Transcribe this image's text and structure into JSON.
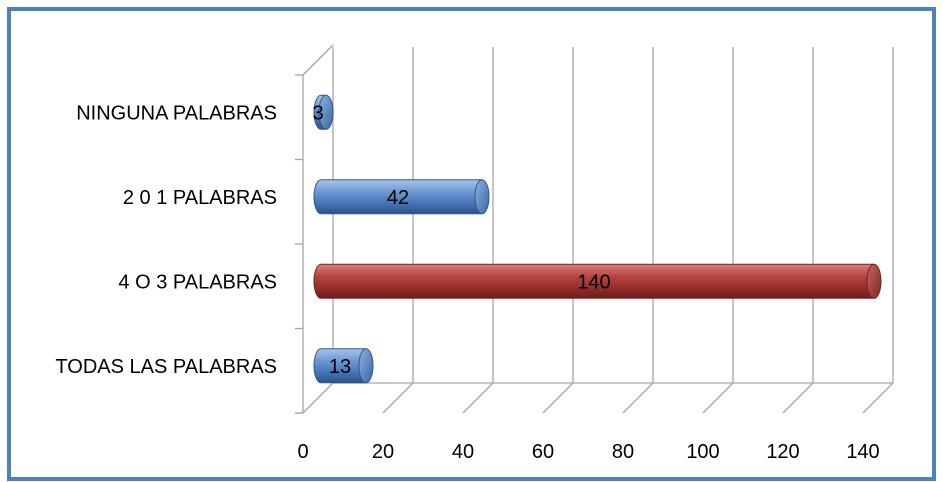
{
  "chart_data": {
    "type": "bar",
    "orientation": "horizontal",
    "style": "3d-cylinder",
    "categories": [
      "TODAS LAS PALABRAS",
      "4 O 3 PALABRAS",
      "2 0 1 PALABRAS",
      "NINGUNA PALABRAS"
    ],
    "values": [
      13,
      140,
      42,
      3
    ],
    "bar_colors": [
      "#4f81bd",
      "#c0504d",
      "#4f81bd",
      "#4f81bd"
    ],
    "data_labels": [
      "13",
      "140",
      "42",
      "3"
    ],
    "xlim": [
      0,
      140
    ],
    "x_ticks": [
      "0",
      "20",
      "40",
      "60",
      "80",
      "100",
      "120",
      "140"
    ],
    "title": "",
    "xlabel": "",
    "ylabel": "",
    "grid": "vertical",
    "legend": "none"
  },
  "colors": {
    "frame_border": "#4f81bd",
    "grid": "#a6a6a6",
    "text": "#000000"
  }
}
